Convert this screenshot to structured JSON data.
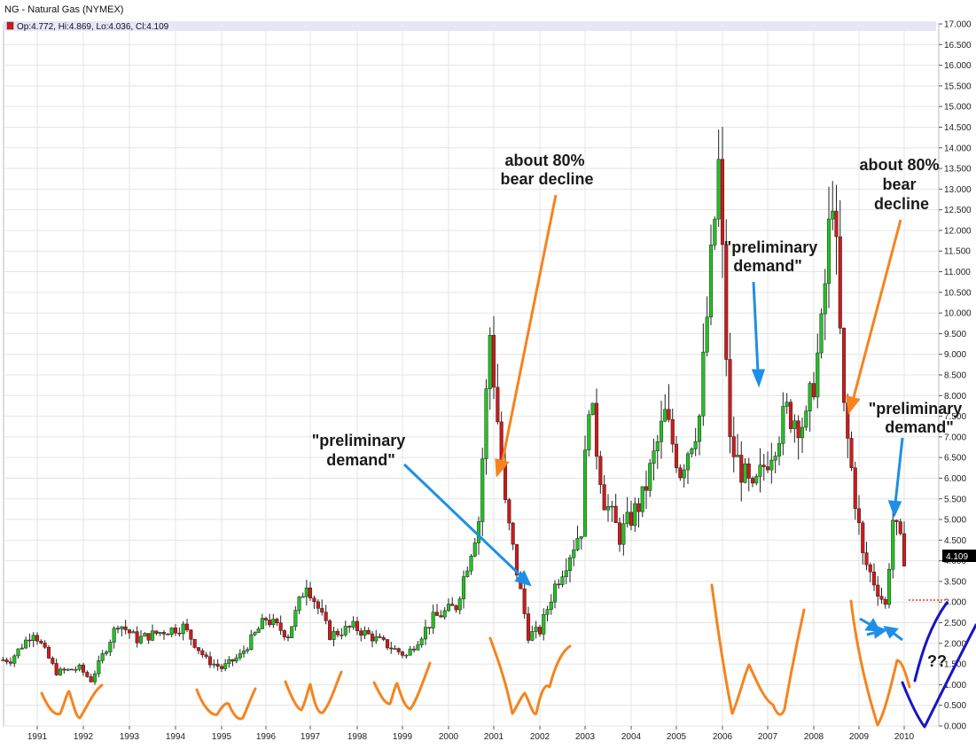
{
  "header": {
    "title": "NG - Natural Gas (NYMEX)",
    "ohlc": "Op:4.772, Hi:4.869, Lo:4.036, Cl:4.109"
  },
  "last_price_label": "4.109",
  "annotations": {
    "bear1": [
      "about 80%",
      "bear decline"
    ],
    "bear2": [
      "about 80%",
      "bear",
      "decline"
    ],
    "prelim1": [
      "\"preliminary",
      "demand\""
    ],
    "prelim2": [
      "\"preliminary",
      "demand\""
    ],
    "prelim3": [
      "\"preliminary",
      "demand\""
    ],
    "question": "??"
  },
  "colors": {
    "up": "#22c322",
    "down": "#d11a1a",
    "orange": "#f5841f",
    "blue_arrow": "#1e8fe6",
    "dark_blue": "#1515c8",
    "grid": "#e4e4e4",
    "header_bar": "#e6e6f7"
  },
  "chart_data": {
    "type": "candlestick",
    "title": "NG - Natural Gas (NYMEX)",
    "timeframe": "monthly",
    "ylim": [
      0,
      17
    ],
    "yticks": [
      "0.000",
      "0.500",
      "1.000",
      "1.500",
      "2.000",
      "2.500",
      "3.000",
      "3.500",
      "4.000",
      "4.500",
      "5.000",
      "5.500",
      "6.000",
      "6.500",
      "7.000",
      "7.500",
      "8.000",
      "8.500",
      "9.000",
      "9.500",
      "10.000",
      "10.500",
      "11.000",
      "11.500",
      "12.000",
      "12.500",
      "13.000",
      "13.500",
      "14.000",
      "14.500",
      "15.000",
      "15.500",
      "16.000",
      "16.500",
      "17.000"
    ],
    "xticks": [
      "1991",
      "1992",
      "1993",
      "1994",
      "1995",
      "1996",
      "1997",
      "1998",
      "1999",
      "2000",
      "2001",
      "2002",
      "2003",
      "2004",
      "2005",
      "2006",
      "2007",
      "2008",
      "2009",
      "2010"
    ],
    "date_range": [
      "1990-04",
      "2010-01"
    ],
    "dotted_level": 3.0,
    "close_series": [
      {
        "date": "1990-06",
        "close": 1.6
      },
      {
        "date": "1990-12",
        "close": 2.3
      },
      {
        "date": "1991-06",
        "close": 1.3
      },
      {
        "date": "1991-12",
        "close": 1.4
      },
      {
        "date": "1992-03",
        "close": 1.1
      },
      {
        "date": "1992-10",
        "close": 2.5
      },
      {
        "date": "1993-03",
        "close": 2.1
      },
      {
        "date": "1993-10",
        "close": 2.3
      },
      {
        "date": "1994-03",
        "close": 2.4
      },
      {
        "date": "1994-09",
        "close": 1.6
      },
      {
        "date": "1995-01",
        "close": 1.4
      },
      {
        "date": "1995-06",
        "close": 1.7
      },
      {
        "date": "1996-01",
        "close": 2.6
      },
      {
        "date": "1996-07",
        "close": 2.2
      },
      {
        "date": "1996-12",
        "close": 3.5
      },
      {
        "date": "1997-06",
        "close": 2.2
      },
      {
        "date": "1997-12",
        "close": 2.4
      },
      {
        "date": "1998-06",
        "close": 2.1
      },
      {
        "date": "1999-02",
        "close": 1.7
      },
      {
        "date": "1999-09",
        "close": 2.6
      },
      {
        "date": "2000-03",
        "close": 2.9
      },
      {
        "date": "2000-09",
        "close": 5.0
      },
      {
        "date": "2000-12",
        "close": 9.5
      },
      {
        "date": "2001-04",
        "close": 5.3
      },
      {
        "date": "2001-10",
        "close": 2.2
      },
      {
        "date": "2002-01",
        "close": 2.3
      },
      {
        "date": "2002-05",
        "close": 3.4
      },
      {
        "date": "2002-12",
        "close": 4.8
      },
      {
        "date": "2003-02",
        "close": 8.0
      },
      {
        "date": "2003-06",
        "close": 5.5
      },
      {
        "date": "2003-10",
        "close": 4.6
      },
      {
        "date": "2004-04",
        "close": 5.5
      },
      {
        "date": "2004-10",
        "close": 7.5
      },
      {
        "date": "2005-02",
        "close": 6.2
      },
      {
        "date": "2005-07",
        "close": 7.5
      },
      {
        "date": "2005-12",
        "close": 13.5
      },
      {
        "date": "2006-03",
        "close": 6.8
      },
      {
        "date": "2006-09",
        "close": 5.6
      },
      {
        "date": "2006-12",
        "close": 6.3
      },
      {
        "date": "2007-06",
        "close": 7.6
      },
      {
        "date": "2007-11",
        "close": 7.3
      },
      {
        "date": "2008-03",
        "close": 9.5
      },
      {
        "date": "2008-06",
        "close": 13.1
      },
      {
        "date": "2008-09",
        "close": 7.6
      },
      {
        "date": "2009-02",
        "close": 4.1
      },
      {
        "date": "2009-08",
        "close": 2.9
      },
      {
        "date": "2009-10",
        "close": 5.0
      },
      {
        "date": "2010-01",
        "close": 4.109
      }
    ]
  }
}
